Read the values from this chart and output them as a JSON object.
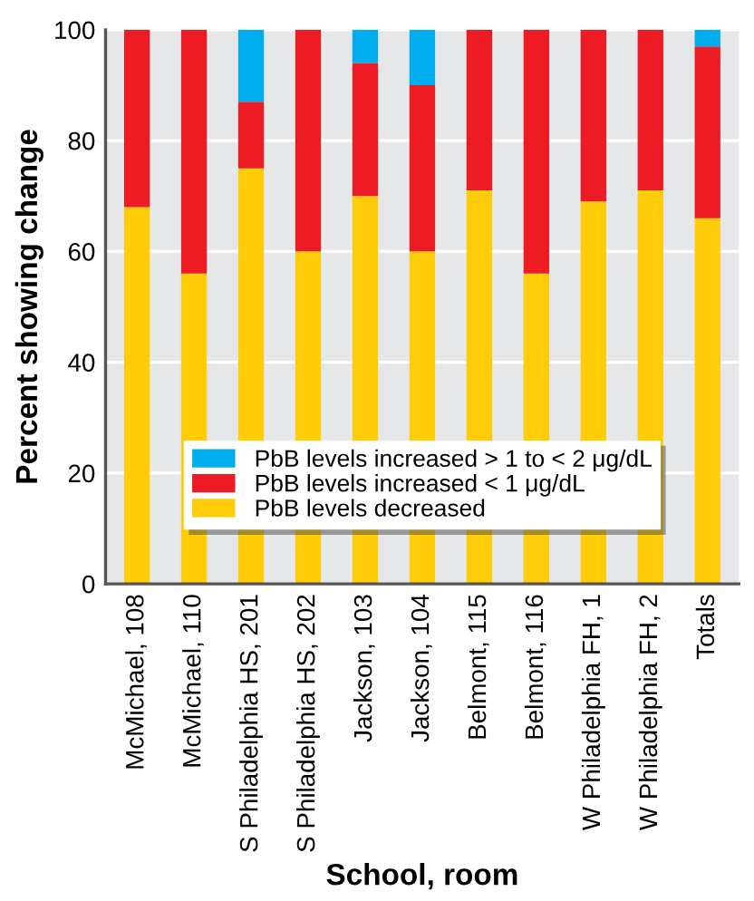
{
  "chart_data": {
    "type": "bar",
    "stacked": true,
    "xlabel": "School, room",
    "ylabel": "Percent showing change",
    "categories": [
      "McMichael, 108",
      "McMichael, 110",
      "S Philadelphia HS, 201",
      "S Philadelphia HS, 202",
      "Jackson, 103",
      "Jackson, 104",
      "Belmont, 115",
      "Belmont, 116",
      "W Philadelphia FH, 1",
      "W Philadelphia FH, 2",
      "Totals"
    ],
    "series": [
      {
        "name": "PbB levels decreased",
        "color": "#ffcc0a",
        "values": [
          68,
          56,
          75,
          60,
          70,
          60,
          71,
          56,
          69,
          71,
          66
        ]
      },
      {
        "name": "PbB levels increased < 1 μg/dL",
        "color": "#ed1c24",
        "values": [
          32,
          44,
          12,
          40,
          24,
          30,
          29,
          44,
          31,
          29,
          31
        ]
      },
      {
        "name": "PbB levels increased > 1 to < 2 μg/dL",
        "color": "#00aeef",
        "values": [
          0,
          0,
          13,
          0,
          6,
          10,
          0,
          0,
          0,
          0,
          3
        ]
      }
    ],
    "ylim": [
      0,
      100
    ],
    "yticks": [
      0,
      20,
      40,
      60,
      80,
      100
    ],
    "grid": "y",
    "legend": "bottom"
  }
}
